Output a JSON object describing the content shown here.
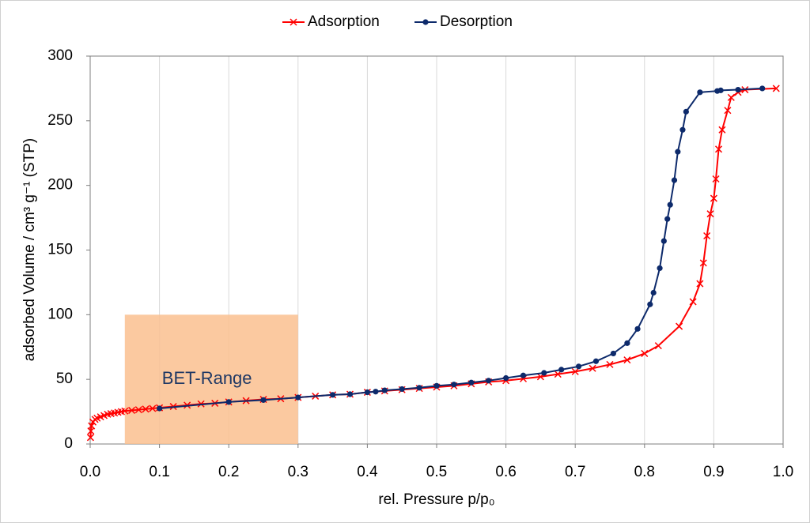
{
  "chart_data": {
    "type": "line",
    "x_label": "rel. Pressure p/p₀",
    "y_label": "adsorbed Volume / cm³ g⁻¹ (STP)",
    "xlim": [
      0,
      1
    ],
    "xticks": [
      {
        "value": 0,
        "label": "0.0"
      },
      0.1,
      0.2,
      0.3,
      0.4,
      0.5,
      0.6,
      0.7,
      0.8,
      0.9,
      {
        "value": 1,
        "label": "1.0"
      }
    ],
    "ylim": [
      0,
      300
    ],
    "yticks": [
      0,
      50,
      100,
      150,
      200,
      250,
      300
    ],
    "grid": "x",
    "legend": "top",
    "bet_range": {
      "label": "BET-Range",
      "x": [
        0.05,
        0.3
      ],
      "y": [
        0,
        100
      ],
      "color": "#fac08f"
    },
    "series": [
      {
        "name": "Adsorption",
        "color": "#ff0000",
        "marker": "x",
        "x": [
          0.0005,
          0.001,
          0.002,
          0.004,
          0.007,
          0.01,
          0.015,
          0.02,
          0.025,
          0.03,
          0.035,
          0.04,
          0.045,
          0.05,
          0.06,
          0.07,
          0.08,
          0.09,
          0.1,
          0.12,
          0.14,
          0.16,
          0.18,
          0.2,
          0.225,
          0.25,
          0.275,
          0.3,
          0.325,
          0.35,
          0.375,
          0.4,
          0.425,
          0.45,
          0.475,
          0.5,
          0.525,
          0.55,
          0.575,
          0.6,
          0.625,
          0.65,
          0.675,
          0.7,
          0.725,
          0.75,
          0.775,
          0.8,
          0.82,
          0.85,
          0.87,
          0.88,
          0.885,
          0.89,
          0.895,
          0.9,
          0.903,
          0.907,
          0.912,
          0.92,
          0.925,
          0.935,
          0.945,
          0.99
        ],
        "values": [
          5,
          10,
          14,
          17,
          19,
          20,
          21,
          22,
          23,
          23.5,
          24,
          24.5,
          25,
          25.5,
          26,
          26.5,
          27,
          27.5,
          28,
          29,
          30,
          31,
          31.5,
          32.5,
          33.5,
          34.5,
          35,
          36,
          37,
          38,
          38.5,
          40,
          41,
          42,
          43,
          44,
          45,
          46.5,
          48,
          49,
          50.5,
          52,
          54,
          56,
          58.5,
          61.5,
          65,
          70,
          76,
          91,
          110,
          124,
          140,
          161,
          178,
          190,
          205,
          228,
          243,
          258,
          268,
          272,
          274,
          275
        ]
      },
      {
        "name": "Desorption",
        "color": "#0d2a6b",
        "marker": "circle",
        "x": [
          0.97,
          0.935,
          0.91,
          0.905,
          0.88,
          0.86,
          0.855,
          0.848,
          0.843,
          0.837,
          0.833,
          0.828,
          0.822,
          0.813,
          0.808,
          0.79,
          0.775,
          0.755,
          0.73,
          0.705,
          0.68,
          0.655,
          0.625,
          0.6,
          0.575,
          0.55,
          0.525,
          0.5,
          0.475,
          0.45,
          0.425,
          0.412,
          0.4,
          0.375,
          0.35,
          0.3,
          0.25,
          0.2,
          0.1
        ],
        "values": [
          275,
          274,
          273.5,
          273,
          272,
          257,
          243,
          226,
          204,
          185,
          174,
          157,
          136,
          117,
          108,
          89,
          78,
          70,
          64,
          60,
          57.5,
          55,
          53,
          51,
          49,
          47.5,
          46,
          45,
          43.5,
          42.5,
          41.5,
          40.5,
          40,
          38.5,
          38,
          36,
          34,
          32.5,
          27.5
        ]
      }
    ]
  }
}
